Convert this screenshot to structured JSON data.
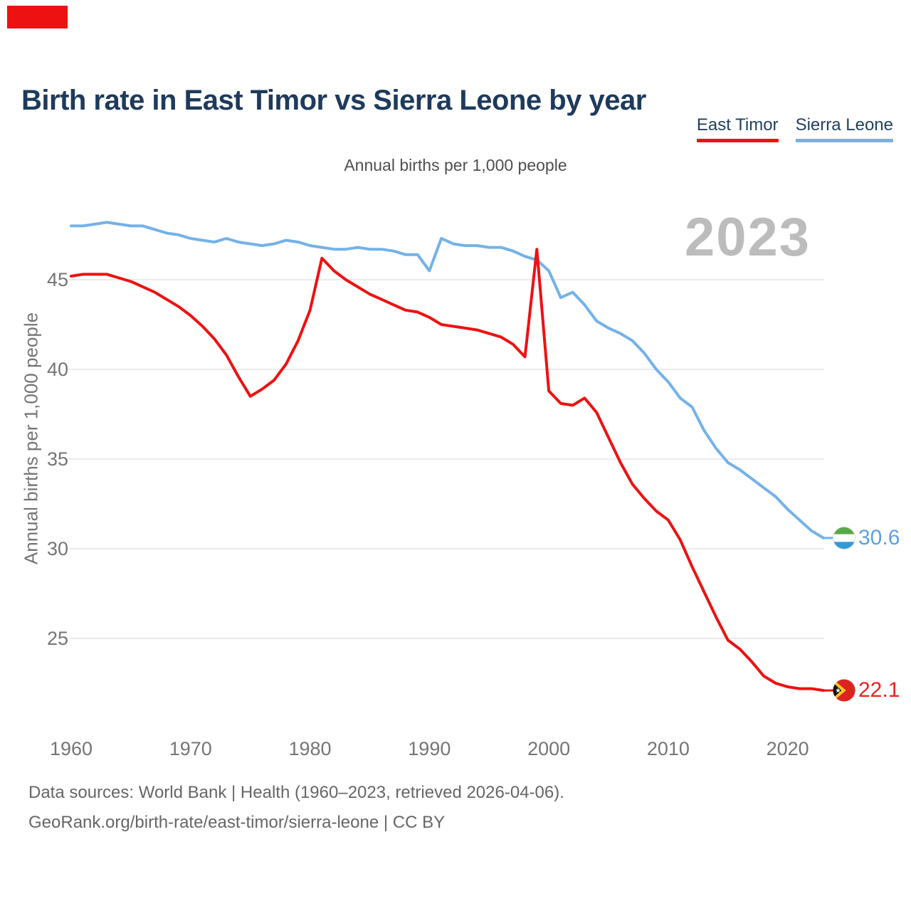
{
  "header": {
    "title": "Birth rate in East Timor vs Sierra Leone by year",
    "accent_bar_color": "#ee1111"
  },
  "legend": [
    {
      "label": "East Timor",
      "color": "#ee1111"
    },
    {
      "label": "Sierra Leone",
      "color": "#74b2e8"
    }
  ],
  "subtitle": "Annual births per 1,000 people",
  "watermark": "2023",
  "y_axis": {
    "label": "Annual births per 1,000 people",
    "ticks": [
      45,
      40,
      35,
      30,
      25
    ]
  },
  "x_axis": {
    "ticks": [
      1960,
      1970,
      1980,
      1990,
      2000,
      2010,
      2020
    ]
  },
  "end_labels": [
    {
      "series": "Sierra Leone",
      "value": "30.6",
      "color": "#5e9fe0",
      "flag": "sierra-leone"
    },
    {
      "series": "East Timor",
      "value": "22.1",
      "color": "#ee2222",
      "flag": "east-timor"
    }
  ],
  "footer": {
    "line1": "Data sources: World Bank | Health (1960–2023, retrieved 2026-04-06).",
    "line2": "GeoRank.org/birth-rate/east-timor/sierra-leone | CC BY"
  },
  "chart_data": {
    "type": "line",
    "title": "Birth rate in East Timor vs Sierra Leone by year",
    "subtitle": "Annual births per 1,000 people",
    "xlabel": "",
    "ylabel": "Annual births per 1,000 people",
    "ylim": [
      21,
      49
    ],
    "grid": "horizontal-only",
    "legend_position": "top-right",
    "x": [
      1960,
      1961,
      1962,
      1963,
      1964,
      1965,
      1966,
      1967,
      1968,
      1969,
      1970,
      1971,
      1972,
      1973,
      1974,
      1975,
      1976,
      1977,
      1978,
      1979,
      1980,
      1981,
      1982,
      1983,
      1984,
      1985,
      1986,
      1987,
      1988,
      1989,
      1990,
      1991,
      1992,
      1993,
      1994,
      1995,
      1996,
      1997,
      1998,
      1999,
      2000,
      2001,
      2002,
      2003,
      2004,
      2005,
      2006,
      2007,
      2008,
      2009,
      2010,
      2011,
      2012,
      2013,
      2014,
      2015,
      2016,
      2017,
      2018,
      2019,
      2020,
      2021,
      2022,
      2023
    ],
    "series": [
      {
        "name": "East Timor",
        "color": "#ee1111",
        "values": [
          45.2,
          45.3,
          45.3,
          45.3,
          45.1,
          44.9,
          44.6,
          44.3,
          43.9,
          43.5,
          43.0,
          42.4,
          41.7,
          40.8,
          39.6,
          38.5,
          38.9,
          39.4,
          40.3,
          41.6,
          43.3,
          46.2,
          45.5,
          45.0,
          44.6,
          44.2,
          43.9,
          43.6,
          43.3,
          43.2,
          42.9,
          42.5,
          42.4,
          42.3,
          42.2,
          42.0,
          41.8,
          41.4,
          40.7,
          46.7,
          38.8,
          38.1,
          38.0,
          38.4,
          37.6,
          36.2,
          34.8,
          33.6,
          32.8,
          32.1,
          31.6,
          30.5,
          29.0,
          27.6,
          26.2,
          24.9,
          24.4,
          23.7,
          22.9,
          22.5,
          22.3,
          22.2,
          22.2,
          22.1
        ]
      },
      {
        "name": "Sierra Leone",
        "color": "#74b2e8",
        "values": [
          48.0,
          48.0,
          48.1,
          48.2,
          48.1,
          48.0,
          48.0,
          47.8,
          47.6,
          47.5,
          47.3,
          47.2,
          47.1,
          47.3,
          47.1,
          47.0,
          46.9,
          47.0,
          47.2,
          47.1,
          46.9,
          46.8,
          46.7,
          46.7,
          46.8,
          46.7,
          46.7,
          46.6,
          46.4,
          46.4,
          45.5,
          47.3,
          47.0,
          46.9,
          46.9,
          46.8,
          46.8,
          46.6,
          46.3,
          46.1,
          45.5,
          44.0,
          44.3,
          43.6,
          42.7,
          42.3,
          42.0,
          41.6,
          40.9,
          40.0,
          39.3,
          38.4,
          37.9,
          36.6,
          35.6,
          34.8,
          34.4,
          33.9,
          33.4,
          32.9,
          32.2,
          31.6,
          31.0,
          30.6
        ]
      }
    ]
  }
}
